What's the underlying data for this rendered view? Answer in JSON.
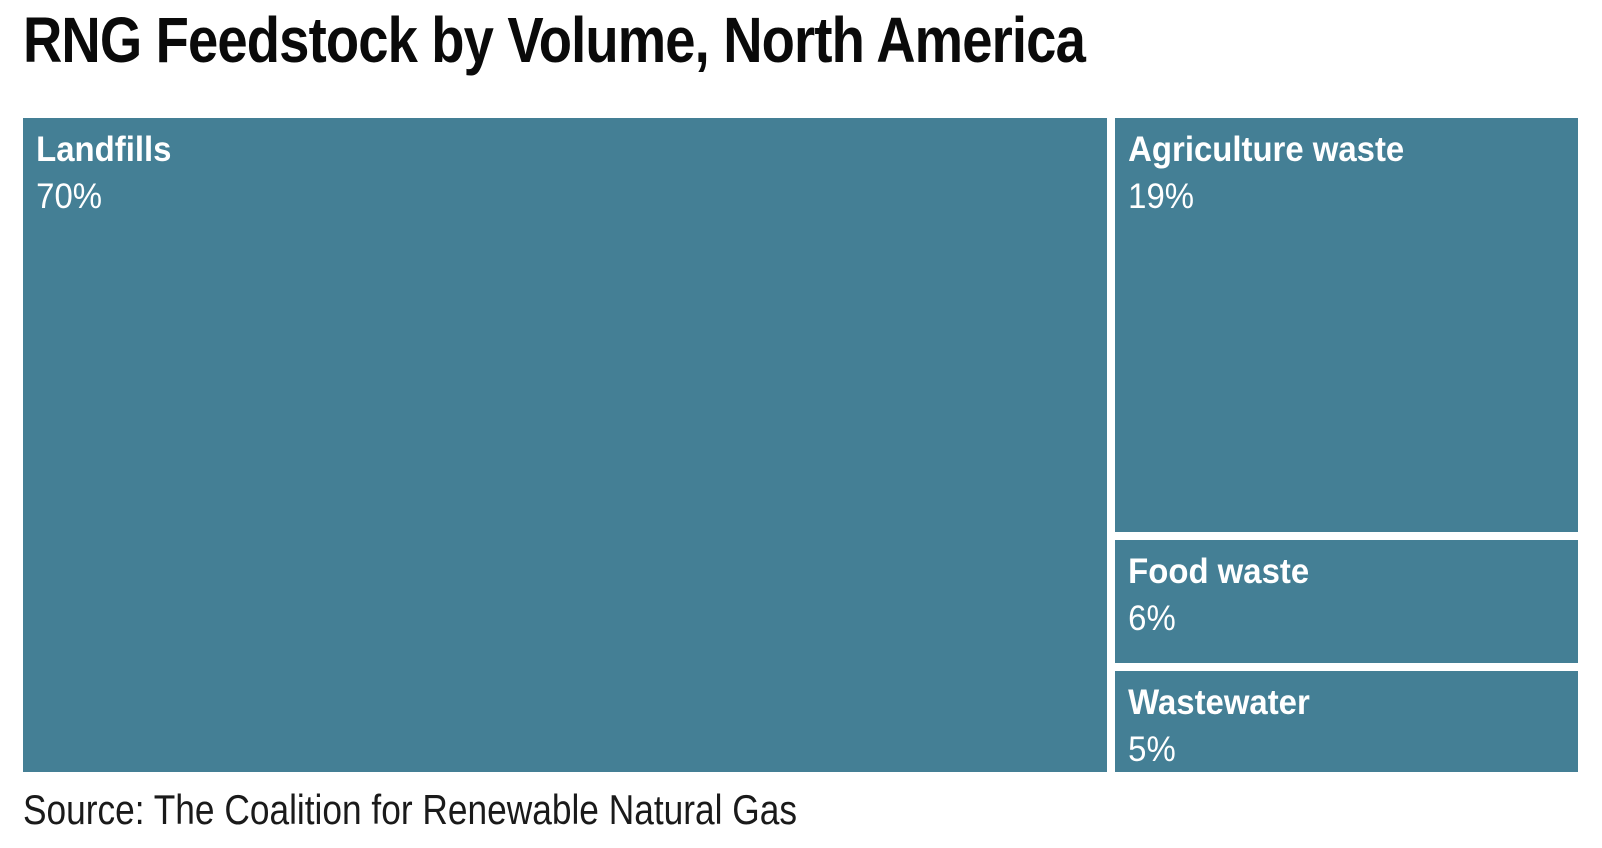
{
  "title": "RNG Feedstock by Volume, North America",
  "source_note": "Source: The Coalition for Renewable Natural Gas",
  "colors": {
    "tile": "#447F95",
    "tile_text": "#FFFFFF",
    "title_text": "#0A0A0A",
    "background": "#FFFFFF",
    "source_text": "#1A1A1A"
  },
  "chart_data": {
    "type": "treemap",
    "title": "RNG Feedstock by Volume, North America",
    "unit": "%",
    "items": [
      {
        "label": "Landfills",
        "value": 70,
        "value_label": "70%"
      },
      {
        "label": "Agriculture waste",
        "value": 19,
        "value_label": "19%"
      },
      {
        "label": "Food waste",
        "value": 6,
        "value_label": "6%"
      },
      {
        "label": "Wastewater",
        "value": 5,
        "value_label": "5%"
      }
    ],
    "source": "The Coalition for Renewable Natural Gas",
    "legend": "none",
    "layout": "single large tile (Landfills) fills left ~70% width full height; right column stacked top-to-bottom: Agriculture waste, Food waste, Wastewater; white 8px gutters between tiles; labels top-left inside tiles"
  }
}
